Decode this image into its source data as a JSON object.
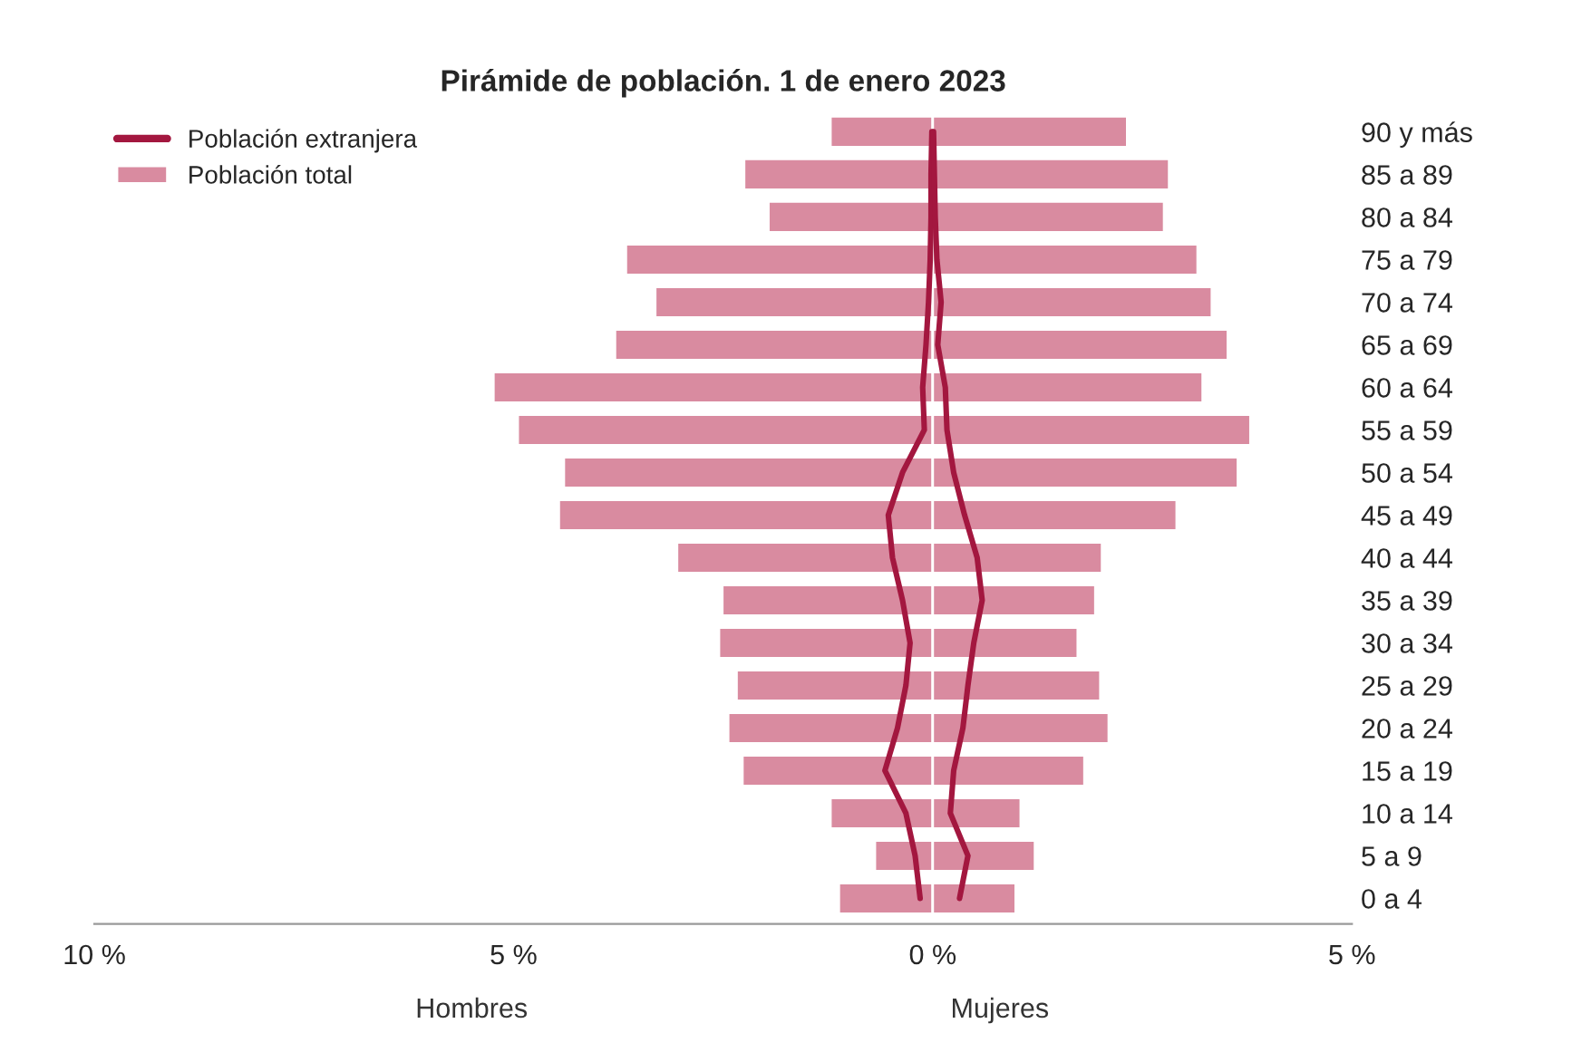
{
  "chart_data": {
    "type": "bar",
    "orientation": "horizontal",
    "stacked": true,
    "title": "Pirámide de población. 1 de enero 2023",
    "categories": [
      "90 y más",
      "85 a 89",
      "80 a 84",
      "75 a 79",
      "70 a 74",
      "65 a 69",
      "60 a 64",
      "55 a 59",
      "50 a 54",
      "45 a 49",
      "40 a 44",
      "35 a 39",
      "30 a 34",
      "25 a 29",
      "20 a 24",
      "15 a 19",
      "10 a 14",
      "5 a 9",
      "0 a 4"
    ],
    "series": [
      {
        "name": "Población extranjera",
        "type": "line",
        "color": "#a3173f",
        "values": [
          -0.01,
          -0.02,
          -0.02,
          -0.03,
          -0.05,
          -0.08,
          -0.12,
          -0.1,
          -0.36,
          -0.53,
          -0.48,
          -0.36,
          -0.27,
          -0.32,
          -0.42,
          -0.57,
          -0.32,
          -0.21,
          -0.15
        ]
      },
      {
        "type": "line",
        "color": "#a3173f",
        "values": [
          0.01,
          0.02,
          0.03,
          0.05,
          0.1,
          0.06,
          0.15,
          0.17,
          0.25,
          0.38,
          0.53,
          0.59,
          0.49,
          0.42,
          0.36,
          0.25,
          0.21,
          0.42,
          0.32
        ]
      },
      {
        "name": "Población total",
        "color": "#d98ba0",
        "values": [
          -1.22,
          -2.25,
          -1.96,
          -3.66,
          -3.31,
          -3.79,
          -5.24,
          -4.95,
          -4.4,
          -4.46,
          -3.05,
          -2.51,
          -2.55,
          -2.34,
          -2.44,
          -2.27,
          -1.22,
          -0.69,
          -1.12
        ]
      },
      {
        "color": "#d98ba0",
        "values": [
          2.32,
          2.82,
          2.76,
          3.16,
          3.33,
          3.52,
          3.22,
          3.79,
          3.64,
          2.91,
          2.02,
          1.94,
          1.73,
          2.0,
          2.1,
          1.81,
          1.05,
          1.22,
          0.99
        ]
      }
    ],
    "xlim": [
      -10,
      5
    ],
    "xticks": [
      {
        "value": -10,
        "label": "10 %"
      },
      {
        "value": -5,
        "label": "5 %"
      },
      {
        "value": 0,
        "label": "0 %"
      },
      {
        "value": 5,
        "label": "5 %"
      }
    ],
    "annotations": [
      "Hombres",
      "Mujeres"
    ],
    "legend": "top left",
    "grid": false
  }
}
